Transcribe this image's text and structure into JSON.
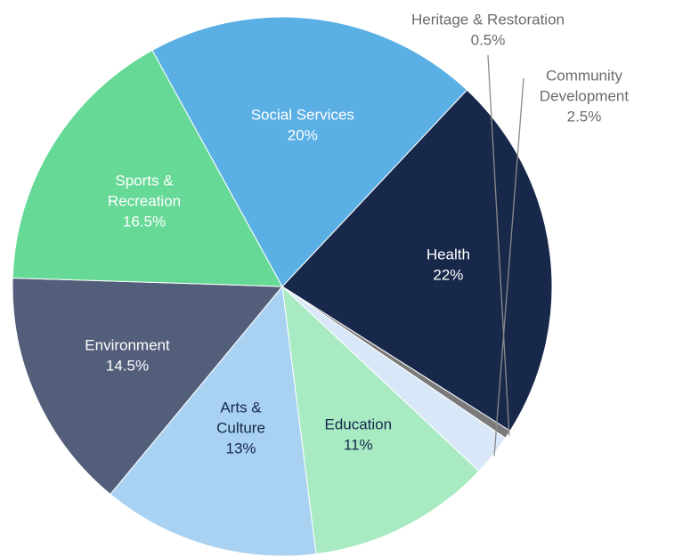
{
  "chart_data": {
    "type": "pie",
    "title": "",
    "unit": "%",
    "start_direction": "clockwise",
    "slices": [
      {
        "label": "Health",
        "value": 22,
        "display": "22%",
        "color": "#17284b",
        "label_color": "#ffffff",
        "label_lines": [
          "Health"
        ]
      },
      {
        "label": "Heritage & Restoration",
        "value": 0.5,
        "display": "0.5%",
        "color": "#7a7a7a",
        "label_color": "#6b6b6b",
        "label_lines": [
          "Heritage & Restoration"
        ],
        "outside": true
      },
      {
        "label": "Community Development",
        "value": 2.5,
        "display": "2.5%",
        "color": "#d9e8f8",
        "label_color": "#6b6b6b",
        "label_lines": [
          "Community",
          "Development"
        ],
        "outside": true
      },
      {
        "label": "Education",
        "value": 11,
        "display": "11%",
        "color": "#a8eac2",
        "label_color": "#17284b",
        "label_lines": [
          "Education"
        ]
      },
      {
        "label": "Arts & Culture",
        "value": 13,
        "display": "13%",
        "color": "#a8d1f2",
        "label_color": "#17284b",
        "label_lines": [
          "Arts &",
          "Culture"
        ]
      },
      {
        "label": "Environment",
        "value": 14.5,
        "display": "14.5%",
        "color": "#535e7a",
        "label_color": "#ffffff",
        "label_lines": [
          "Environment"
        ]
      },
      {
        "label": "Sports & Recreation",
        "value": 16.5,
        "display": "16.5%",
        "color": "#67d996",
        "label_color": "#ffffff",
        "label_lines": [
          "Sports &",
          "Recreation"
        ]
      },
      {
        "label": "Social Services",
        "value": 20,
        "display": "20%",
        "color": "#5aafe4",
        "label_color": "#ffffff",
        "label_lines": [
          "Social Services"
        ]
      }
    ]
  }
}
